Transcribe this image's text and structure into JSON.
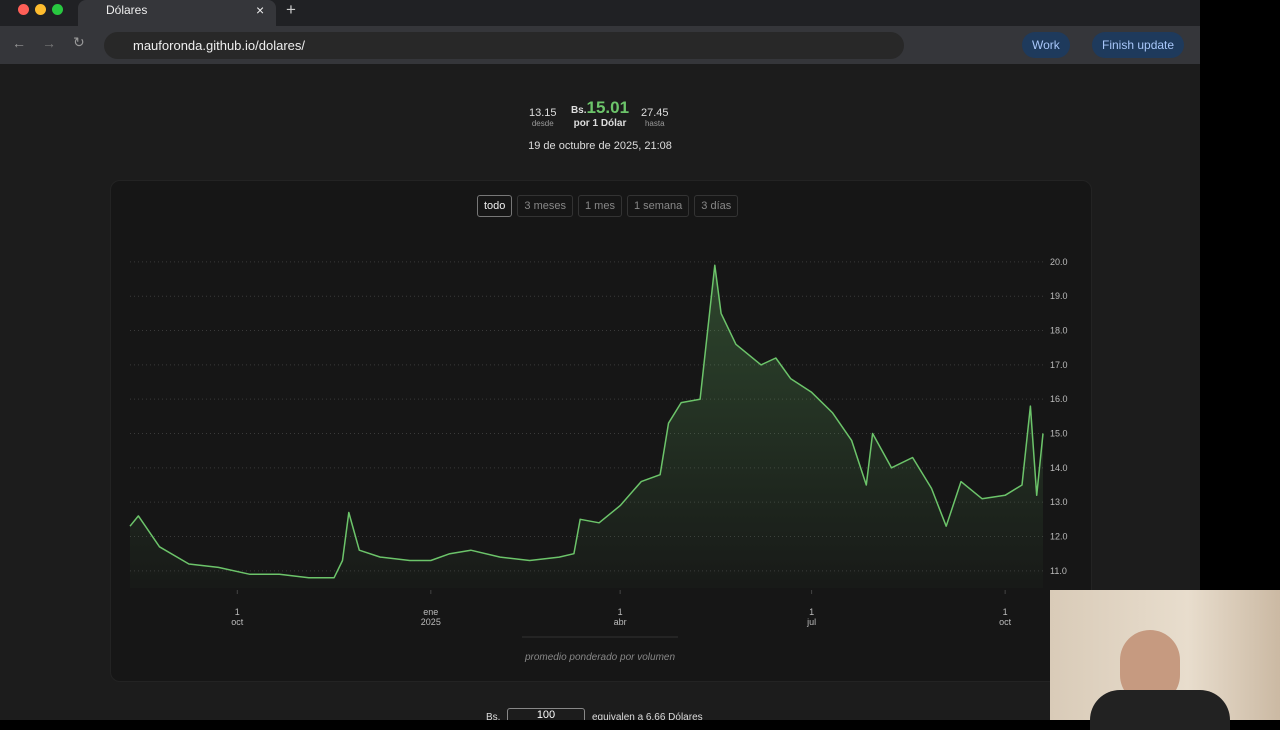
{
  "browser": {
    "tab_title": "Dólares",
    "url": "mauforonda.github.io/dolares/",
    "profile": "Work",
    "update_button": "Finish update"
  },
  "summary": {
    "low": "13.15",
    "low_label": "desde",
    "currency": "Bs.",
    "rate": "15.01",
    "rate_label": "por 1 Dólar",
    "high": "27.45",
    "high_label": "hasta",
    "timestamp": "19 de octubre de 2025, 21:08"
  },
  "ranges": [
    "todo",
    "3 meses",
    "1 mes",
    "1 semana",
    "3 días"
  ],
  "chart_data": {
    "type": "line",
    "color": "#6cc46a",
    "grid": true,
    "x": [
      "2024-08-11",
      "2024-08-15",
      "2024-08-25",
      "2024-09-08",
      "2024-09-22",
      "2024-10-07",
      "2024-10-21",
      "2024-11-04",
      "2024-11-16",
      "2024-11-20",
      "2024-11-23",
      "2024-11-28",
      "2024-12-08",
      "2024-12-22",
      "2025-01-01",
      "2025-01-10",
      "2025-01-20",
      "2025-02-03",
      "2025-02-17",
      "2025-03-03",
      "2025-03-10",
      "2025-03-13",
      "2025-03-22",
      "2025-04-01",
      "2025-04-11",
      "2025-04-20",
      "2025-04-24",
      "2025-04-30",
      "2025-05-09",
      "2025-05-16",
      "2025-05-19",
      "2025-05-26",
      "2025-06-07",
      "2025-06-14",
      "2025-06-21",
      "2025-07-01",
      "2025-07-11",
      "2025-07-20",
      "2025-07-27",
      "2025-07-30",
      "2025-08-08",
      "2025-08-18",
      "2025-08-27",
      "2025-09-03",
      "2025-09-10",
      "2025-09-20",
      "2025-10-01",
      "2025-10-09",
      "2025-10-13",
      "2025-10-16",
      "2025-10-19"
    ],
    "values": [
      12.3,
      12.6,
      11.7,
      11.2,
      11.1,
      10.9,
      10.9,
      10.8,
      10.8,
      11.3,
      12.7,
      11.6,
      11.4,
      11.3,
      11.3,
      11.5,
      11.6,
      11.4,
      11.3,
      11.4,
      11.5,
      12.5,
      12.4,
      12.9,
      13.6,
      13.8,
      15.3,
      15.9,
      16.0,
      19.9,
      18.5,
      17.6,
      17.0,
      17.2,
      16.6,
      16.2,
      15.6,
      14.8,
      13.5,
      15.0,
      14.0,
      14.3,
      13.4,
      12.3,
      13.6,
      13.1,
      13.2,
      13.5,
      15.8,
      13.2,
      15.0
    ],
    "xlim": [
      "2024-08-11",
      "2025-10-19"
    ],
    "xticks": [
      {
        "value": "2024-10-01",
        "label": [
          "1",
          "oct"
        ]
      },
      {
        "value": "2025-01-01",
        "label": [
          "ene",
          "2025"
        ]
      },
      {
        "value": "2025-04-01",
        "label": [
          "1",
          "abr"
        ]
      },
      {
        "value": "2025-07-01",
        "label": [
          "1",
          "jul"
        ]
      },
      {
        "value": "2025-10-01",
        "label": [
          "1",
          "oct"
        ]
      }
    ],
    "ylim": [
      10.5,
      20.2
    ],
    "yticks": [
      {
        "value": 11,
        "label": "11.0"
      },
      {
        "value": 12,
        "label": "12.0"
      },
      {
        "value": 13,
        "label": "13.0"
      },
      {
        "value": 14,
        "label": "14.0"
      },
      {
        "value": 15,
        "label": "15.0"
      },
      {
        "value": 16,
        "label": "16.0"
      },
      {
        "value": 17,
        "label": "17.0"
      },
      {
        "value": 18,
        "label": "18.0"
      },
      {
        "value": 19,
        "label": "19.0"
      },
      {
        "value": 20,
        "label": "20.0"
      }
    ],
    "caption": "promedio ponderado por volumen"
  },
  "converter": {
    "currency": "Bs.",
    "amount": "100",
    "result": "equivalen a 6.66 Dólares"
  }
}
